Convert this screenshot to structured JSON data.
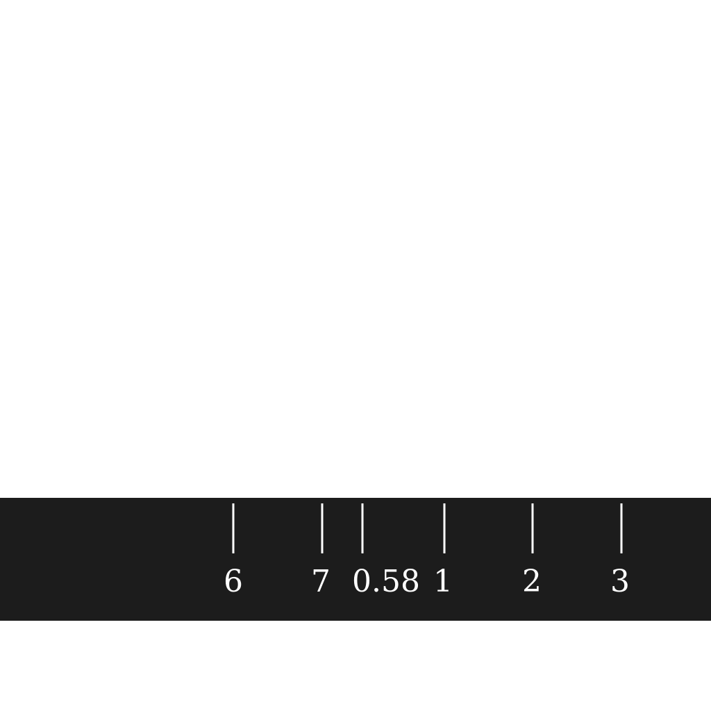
{
  "ruler": {
    "background_color": "#1c1c1c",
    "tick_color": "#ffffff",
    "ticks": [
      {
        "label": "6"
      },
      {
        "label": "7"
      },
      {
        "label": "0.58"
      },
      {
        "label": "1"
      },
      {
        "label": "2"
      },
      {
        "label": "3"
      }
    ]
  }
}
